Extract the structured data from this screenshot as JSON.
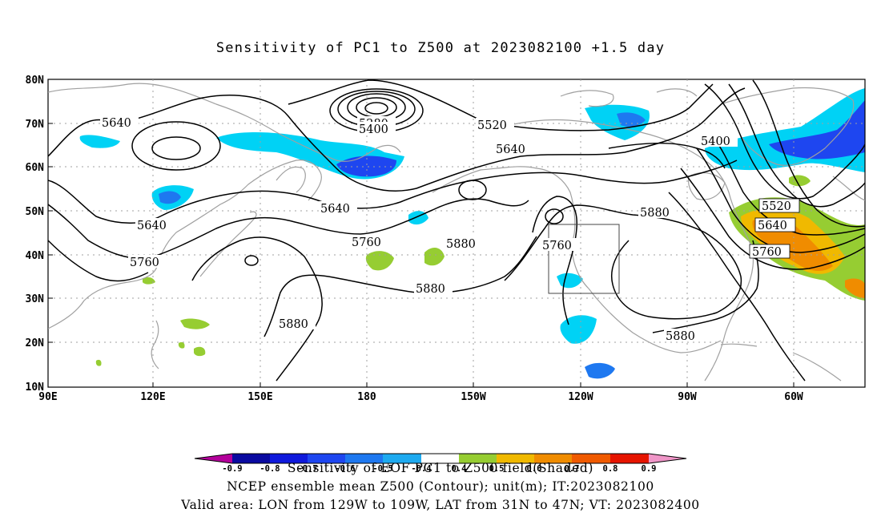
{
  "title": "Sensitivity of PC1 to Z500 at 2023082100 +1.5 day",
  "lat_labels": [
    "80N",
    "70N",
    "60N",
    "50N",
    "40N",
    "30N",
    "20N",
    "10N"
  ],
  "lon_labels": [
    "90E",
    "120E",
    "150E",
    "180",
    "150W",
    "120W",
    "90W",
    "60W"
  ],
  "contour_labels": [
    "5640",
    "5280",
    "5400",
    "5520",
    "5640",
    "5400",
    "5640",
    "5640",
    "5760",
    "5880",
    "5760",
    "5880",
    "5880",
    "5520",
    "5640",
    "5760",
    "5880",
    "5760",
    "5880"
  ],
  "colorbar": {
    "labels": [
      "-0.9",
      "-0.8",
      "-0.7",
      "-0.6",
      "-0.5",
      "-0.4",
      "0.4",
      "0.5",
      "0.6",
      "0.7",
      "0.8",
      "0.9"
    ],
    "colors": [
      "#b4009b",
      "#0a0aa0",
      "#0f19dc",
      "#1e46f0",
      "#1e78f0",
      "#1eaaf0",
      "#00d2f5",
      "#ffffff",
      "#96cd32",
      "#f0b900",
      "#f08c00",
      "#f05a00",
      "#e61400",
      "#f096c8"
    ]
  },
  "captions": [
    "Sensitivity of EOF PC1 to Z500 field(Shaded)",
    "NCEP ensemble mean Z500 (Contour); unit(m); IT:2023082100",
    "Valid area: LON from 129W to 109W, LAT from 31N to 47N; VT: 2023082400"
  ],
  "colors": {
    "coast": "#a0a0a0",
    "contour": "#000000",
    "grid": "#a0a0a0"
  }
}
